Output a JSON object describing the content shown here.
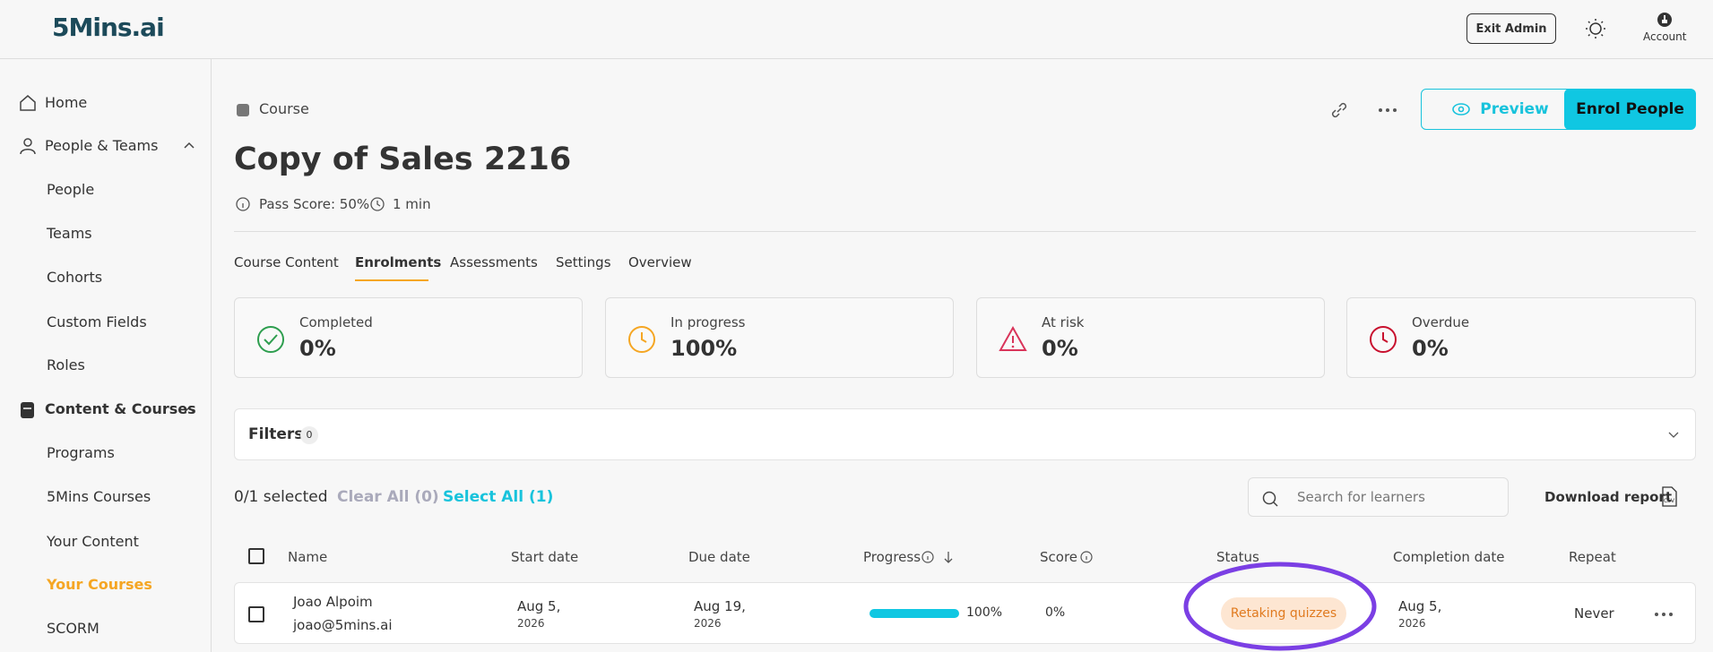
{
  "header": {
    "logo": "5Mins.ai",
    "exit_admin": "Exit Admin",
    "account": "Account"
  },
  "sidebar": {
    "items": [
      "Home",
      "People & Teams",
      "People",
      "Teams",
      "Cohorts",
      "Custom Fields",
      "Roles",
      "Content & Courses",
      "Programs",
      "5Mins Courses",
      "Your Content",
      "Your Courses",
      "SCORM"
    ]
  },
  "course": {
    "kind": "Course",
    "title": "Copy of Sales 2216",
    "pass_score": "Pass Score: 50%",
    "duration": "1 min"
  },
  "actions": {
    "preview": "Preview",
    "enrol": "Enrol People"
  },
  "tabs": [
    "Course Content",
    "Enrolments",
    "Assessments",
    "Settings",
    "Overview"
  ],
  "stats": [
    {
      "label": "Completed",
      "value": "0%"
    },
    {
      "label": "In progress",
      "value": "100%"
    },
    {
      "label": "At risk",
      "value": "0%"
    },
    {
      "label": "Overdue",
      "value": "0%"
    }
  ],
  "filters": {
    "label": "Filters",
    "count": "0"
  },
  "selection": {
    "selected": "0/1 selected",
    "clear_all": "Clear All (0)",
    "select_all": "Select All (1)"
  },
  "search": {
    "placeholder": "Search for learners"
  },
  "download": "Download report",
  "table": {
    "headers": [
      "Name",
      "Start date",
      "Due date",
      "Progress",
      "Score",
      "Status",
      "Completion date",
      "Repeat"
    ],
    "rows": [
      {
        "name": "Joao Alpoim",
        "email": "joao@5mins.ai",
        "start": "Aug 5,",
        "start_year": "2026",
        "due": "Aug 19,",
        "due_year": "2026",
        "progress": "100%",
        "score": "0%",
        "status": "Retaking quizzes",
        "completion": "Aug 5,",
        "completion_year": "2026",
        "repeat": "Never"
      }
    ]
  }
}
